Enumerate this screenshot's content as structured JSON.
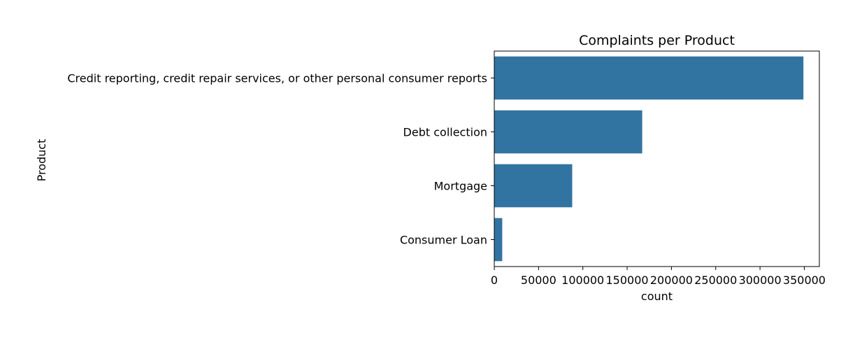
{
  "chart_data": {
    "type": "bar",
    "orientation": "horizontal",
    "title": "Complaints per Product",
    "xlabel": "count",
    "ylabel": "Product",
    "categories": [
      "Credit reporting, credit repair services, or other personal consumer reports",
      "Debt collection",
      "Mortgage",
      "Consumer Loan"
    ],
    "values": [
      349000,
      167000,
      88000,
      9000
    ],
    "xlim": [
      0,
      367000
    ],
    "xticks": [
      0,
      50000,
      100000,
      150000,
      200000,
      250000,
      300000,
      350000
    ],
    "grid": false,
    "bar_color": "#3274a1"
  }
}
